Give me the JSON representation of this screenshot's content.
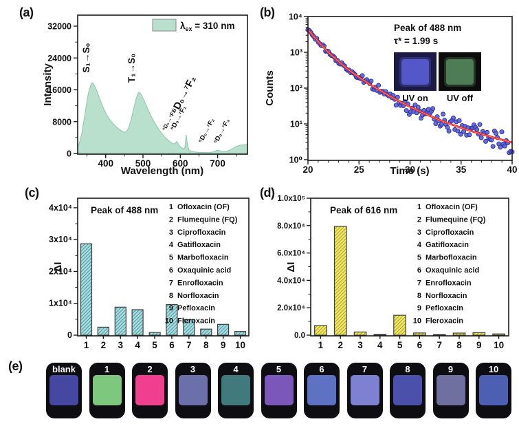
{
  "figure_labels": {
    "a": "(a)",
    "b": "(b)",
    "c": "(c)",
    "d": "(d)",
    "e": "(e)"
  },
  "antibiotics": [
    {
      "num": "1",
      "name": "Ofloxacin (OF)"
    },
    {
      "num": "2",
      "name": "Flumequine (FQ)"
    },
    {
      "num": "3",
      "name": "Ciprofloxacin"
    },
    {
      "num": "4",
      "name": "Gatifloxacin"
    },
    {
      "num": "5",
      "name": "Marbofloxacin"
    },
    {
      "num": "6",
      "name": "Oxaquinic acid"
    },
    {
      "num": "7",
      "name": "Enrofloxacin"
    },
    {
      "num": "8",
      "name": "Norfloxacin"
    },
    {
      "num": "9",
      "name": "Pefloxacin"
    },
    {
      "num": "10",
      "name": "Fleroxacin"
    }
  ],
  "chart_data": [
    {
      "panel": "a",
      "type": "area",
      "xlabel": "Wavelength (nm)",
      "ylabel": "Intensity",
      "legend_label": {
        "symbol": "λ",
        "subscript": "ex",
        "rest": " = 310 nm"
      },
      "xlim": [
        325,
        780
      ],
      "ylim": [
        0,
        34500
      ],
      "xticks": [
        400,
        500,
        600,
        700
      ],
      "yticks": [
        0,
        8000,
        16000,
        24000,
        32000
      ],
      "ytick_labels": [
        "0",
        "8000",
        "16000",
        "24000",
        "32000"
      ],
      "fill_color": "#b9e0cc",
      "edge_color": "#8cc7ad",
      "points": [
        [
          325,
          1500
        ],
        [
          330,
          2800
        ],
        [
          336,
          5000
        ],
        [
          342,
          8500
        ],
        [
          348,
          12000
        ],
        [
          354,
          15300
        ],
        [
          360,
          17200
        ],
        [
          364,
          17800
        ],
        [
          368,
          17400
        ],
        [
          374,
          16300
        ],
        [
          380,
          14800
        ],
        [
          388,
          12800
        ],
        [
          396,
          11000
        ],
        [
          404,
          9500
        ],
        [
          412,
          8400
        ],
        [
          420,
          7500
        ],
        [
          428,
          6700
        ],
        [
          436,
          6100
        ],
        [
          444,
          5600
        ],
        [
          450,
          5300
        ],
        [
          456,
          5500
        ],
        [
          462,
          6600
        ],
        [
          468,
          8400
        ],
        [
          474,
          10800
        ],
        [
          480,
          13200
        ],
        [
          485,
          14800
        ],
        [
          489,
          15400
        ],
        [
          493,
          15100
        ],
        [
          498,
          14300
        ],
        [
          504,
          13100
        ],
        [
          511,
          11600
        ],
        [
          518,
          10100
        ],
        [
          526,
          8600
        ],
        [
          534,
          7300
        ],
        [
          542,
          6100
        ],
        [
          550,
          5100
        ],
        [
          558,
          4200
        ],
        [
          566,
          3400
        ],
        [
          574,
          2800
        ],
        [
          581,
          2400
        ],
        [
          586,
          2500
        ],
        [
          590,
          3000
        ],
        [
          593,
          2700
        ],
        [
          597,
          2000
        ],
        [
          602,
          1500
        ],
        [
          608,
          1200
        ],
        [
          612,
          1400
        ],
        [
          616,
          4700
        ],
        [
          619,
          2200
        ],
        [
          623,
          900
        ],
        [
          630,
          550
        ],
        [
          638,
          380
        ],
        [
          648,
          300
        ],
        [
          658,
          260
        ],
        [
          668,
          240
        ],
        [
          678,
          260
        ],
        [
          688,
          400
        ],
        [
          695,
          700
        ],
        [
          701,
          850
        ],
        [
          707,
          650
        ],
        [
          715,
          480
        ],
        [
          723,
          520
        ],
        [
          732,
          800
        ],
        [
          741,
          1300
        ],
        [
          750,
          1800
        ],
        [
          762,
          2100
        ],
        [
          772,
          2200
        ],
        [
          780,
          2300
        ]
      ],
      "annotations": [
        {
          "text": "S₁→S₀",
          "x": 130,
          "y": 84,
          "rot": -90,
          "size": 13.5
        },
        {
          "text": "T₁→S₀",
          "x": 196,
          "y": 99,
          "rot": -90,
          "size": 13.5
        },
        {
          "text": "⁵D₀→⁷F₀",
          "x": 248,
          "y": 176,
          "rot": -62,
          "size": 8
        },
        {
          "text": "⁵D₀→⁷F₁",
          "x": 262,
          "y": 173,
          "rot": -62,
          "size": 9.5
        },
        {
          "text": "⁵D₀→⁷F₂",
          "x": 271,
          "y": 140,
          "rot": -62,
          "size": 14.5
        },
        {
          "text": "⁵D₀→⁷F₃",
          "x": 303,
          "y": 191,
          "rot": -62,
          "size": 9.5
        },
        {
          "text": "⁵D₀→⁷F₄",
          "x": 325,
          "y": 192,
          "rot": -62,
          "size": 9.5
        }
      ]
    },
    {
      "panel": "b",
      "type": "scatter",
      "xlabel": "Time (s)",
      "ylabel": "Counts",
      "xlim": [
        20,
        40
      ],
      "ylog_lim": [
        1,
        10000
      ],
      "xticks": [
        20,
        25,
        30,
        35,
        40
      ],
      "ytick_labels": [
        "10⁰",
        "10¹",
        "10²",
        "10³",
        "10⁴"
      ],
      "annotation_line1": "Peak of 488 nm",
      "annotation_line2": "τ* = 1.99 s",
      "inset_photos": [
        {
          "label": "UV on",
          "bg": "#1b1b45",
          "square": "#5457c8"
        },
        {
          "label": "UV off",
          "bg": "#0c0c0c",
          "square": "#4e7c54"
        }
      ],
      "fit_curve": [
        [
          20,
          4300
        ],
        [
          21,
          2000
        ],
        [
          22,
          1000
        ],
        [
          23,
          550
        ],
        [
          24,
          320
        ],
        [
          25,
          200
        ],
        [
          26,
          130
        ],
        [
          27,
          88
        ],
        [
          28,
          60
        ],
        [
          29,
          42
        ],
        [
          30,
          30
        ],
        [
          31,
          22
        ],
        [
          32,
          16.5
        ],
        [
          33,
          12.5
        ],
        [
          34,
          9.8
        ],
        [
          35,
          7.8
        ],
        [
          36,
          6.3
        ],
        [
          37,
          5.2
        ],
        [
          38,
          4.3
        ],
        [
          39,
          3.6
        ],
        [
          40,
          3.0
        ]
      ],
      "scatter_style": {
        "seed": 7,
        "count": 140,
        "jitter_base": 0.03,
        "jitter_slope": 0.013,
        "dot_fill": "#5a60d2",
        "dot_edge": "#2d33a6"
      },
      "line_color": "#e8231d"
    },
    {
      "panel": "c",
      "type": "bar",
      "title": "Peak of 488 nm",
      "ylabel": "ΔI",
      "categories": [
        "1",
        "2",
        "3",
        "4",
        "5",
        "6",
        "7",
        "8",
        "9",
        "10"
      ],
      "values": [
        28700,
        2500,
        8800,
        8000,
        850,
        9600,
        4900,
        1900,
        3400,
        1150
      ],
      "ylim": [
        0,
        43000
      ],
      "yticks": [
        0,
        10000,
        20000,
        30000,
        40000
      ],
      "ytick_labels": [
        "0",
        "1x10⁴",
        "2x10⁴",
        "3x10⁴",
        "4x10⁴"
      ],
      "bar_fill": "#aadde0",
      "bar_hatch": "#4e9aa0",
      "bar_edge": "#3d3d3d",
      "legend_ref": "antibiotics"
    },
    {
      "panel": "d",
      "type": "bar",
      "title": "Peak of 616 nm",
      "ylabel": "ΔI",
      "categories": [
        "1",
        "2",
        "3",
        "4",
        "5",
        "6",
        "7",
        "8",
        "9",
        "10"
      ],
      "values": [
        7000,
        79500,
        2300,
        600,
        14500,
        1600,
        250,
        1500,
        1800,
        900
      ],
      "ylim": [
        0,
        100000
      ],
      "yticks": [
        0,
        20000,
        40000,
        60000,
        80000,
        100000
      ],
      "ytick_labels": [
        "0.0",
        "2.0x10⁴",
        "4.0x10⁴",
        "6.0x10⁴",
        "8.0x10⁴",
        "1.0x10⁵"
      ],
      "bar_fill": "#efe96a",
      "bar_hatch": "#b3a424",
      "bar_edge": "#3d3d3d",
      "legend_ref": "antibiotics"
    }
  ],
  "panel_e": {
    "tiles": [
      {
        "label": "blank",
        "color": "#4547a0"
      },
      {
        "label": "1",
        "color": "#7ec77f"
      },
      {
        "label": "2",
        "color": "#ef3f8e"
      },
      {
        "label": "3",
        "color": "#6b70ab"
      },
      {
        "label": "4",
        "color": "#417a7d"
      },
      {
        "label": "5",
        "color": "#7b57b9"
      },
      {
        "label": "6",
        "color": "#5e72c3"
      },
      {
        "label": "7",
        "color": "#7e81d1"
      },
      {
        "label": "8",
        "color": "#4b50ab"
      },
      {
        "label": "9",
        "color": "#6f70a0"
      },
      {
        "label": "10",
        "color": "#4c5fb3"
      }
    ]
  }
}
